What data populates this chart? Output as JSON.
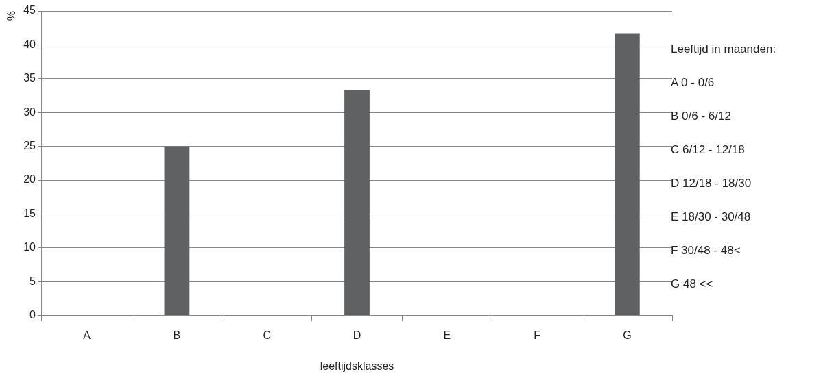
{
  "chart_data": {
    "type": "bar",
    "ylabel": "%",
    "xlabel": "leeftijdsklasses",
    "categories": [
      "A",
      "B",
      "C",
      "D",
      "E",
      "F",
      "G"
    ],
    "values": [
      0,
      25,
      0,
      33.3,
      0,
      0,
      41.7
    ],
    "color": "#5f6163",
    "ylim": [
      0,
      45
    ],
    "yticks": [
      0,
      5,
      10,
      15,
      20,
      25,
      30,
      35,
      40,
      45
    ],
    "grid": "y",
    "legend": false,
    "annotations": [
      "Leeftijd in maanden:",
      "A 0 - 0/6",
      "B 0/6 - 6/12",
      "C 6/12 - 12/18",
      "D 12/18 - 18/30",
      "E 18/30 - 30/48",
      "F 30/48 - 48<",
      "G 48 <<"
    ]
  }
}
